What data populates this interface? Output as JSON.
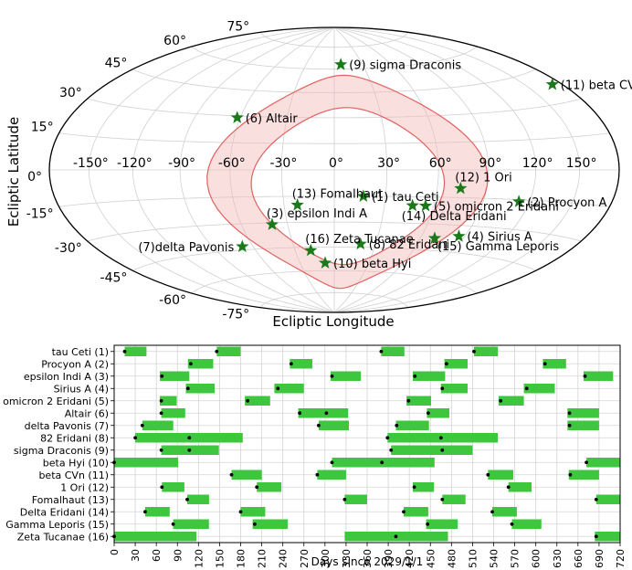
{
  "chart_data": [
    {
      "type": "scatter",
      "projection": "hammer-aitoff",
      "title": "",
      "xlabel": "Ecliptic Longitude",
      "ylabel": "Ecliptic Latitude",
      "xlim": [
        -180,
        180
      ],
      "ylim": [
        -90,
        90
      ],
      "grid": true,
      "lon_ticks": [
        -150,
        -120,
        -90,
        -60,
        -30,
        0,
        30,
        60,
        90,
        120,
        150
      ],
      "lon_tick_labels": [
        "-150°",
        "-120°",
        "-90°",
        "-60°",
        "-30°",
        "0°",
        "30°",
        "60°",
        "90°",
        "120°",
        "150°"
      ],
      "lat_ticks": [
        -75,
        -60,
        -45,
        -30,
        -15,
        0,
        15,
        30,
        45,
        60,
        75
      ],
      "lat_tick_labels": [
        "-75°",
        "-60°",
        "-45°",
        "-30°",
        "-15°",
        "0°",
        "15°",
        "30°",
        "45°",
        "60°",
        "75°"
      ],
      "marker_color": "#1a7a1a",
      "region_color": "#f2b8b5",
      "region_edge_color": "#e46060",
      "stars": [
        {
          "label": "(1) tau Ceti",
          "lon": 17,
          "lat": -15,
          "text_side": "right"
        },
        {
          "label": "(2) Procyon A",
          "lon": 113,
          "lat": -16,
          "text_side": "right"
        },
        {
          "label": "(3) epsilon Indi A",
          "lon": -40,
          "lat": -31,
          "text_side": "above-right"
        },
        {
          "label": "(4) Sirius A",
          "lon": 86,
          "lat": -36,
          "text_side": "right"
        },
        {
          "label": "(5) omicron 2 Eridani",
          "lon": 55,
          "lat": -20,
          "text_side": "right"
        },
        {
          "label": "(6) Altair",
          "lon": -62,
          "lat": 29,
          "text_side": "right"
        },
        {
          "label": "(7)delta Pavonis",
          "lon": -68,
          "lat": -43,
          "text_side": "left"
        },
        {
          "label": "(8) 82 Eridani",
          "lon": 19,
          "lat": -43,
          "text_side": "right"
        },
        {
          "label": "(9) sigma Draconis",
          "lon": 7,
          "lat": 63,
          "text_side": "right"
        },
        {
          "label": "(10) beta Hyi",
          "lon": -8,
          "lat": -55,
          "text_side": "right"
        },
        {
          "label": "(11) beta CVn",
          "lon": 172,
          "lat": 38,
          "text_side": "right"
        },
        {
          "label": "(12) 1 Ori",
          "lon": 74,
          "lat": -10,
          "text_side": "above-right"
        },
        {
          "label": "(13) Fomalhaut",
          "lon": -22,
          "lat": -20,
          "text_side": "above-right"
        },
        {
          "label": "(14) Delta Eridani",
          "lon": 47,
          "lat": -20,
          "text_side": "below"
        },
        {
          "label": "(15) Gamma Leporis",
          "lon": 70,
          "lat": -38,
          "text_side": "below-right"
        },
        {
          "label": "(16) Zeta Tucanae",
          "lon": -18,
          "lat": -47,
          "text_side": "above-right"
        }
      ]
    },
    {
      "type": "gantt",
      "xlabel": "Days since 2029/1/1",
      "ylabel": "",
      "xlim": [
        0,
        720
      ],
      "x_ticks": [
        0,
        30,
        60,
        90,
        120,
        150,
        180,
        210,
        240,
        270,
        300,
        330,
        360,
        390,
        420,
        450,
        480,
        510,
        540,
        570,
        600,
        630,
        660,
        690,
        720
      ],
      "grid": true,
      "bar_color": "#3ec73e",
      "marker_color": "#000000",
      "categories": [
        "tau Ceti (1)",
        "Procyon A (2)",
        "epsilon Indi A (3)",
        "Sirius A (4)",
        "omicron 2 Eridani (5)",
        "Altair (6)",
        "delta Pavonis (7)",
        "82 Eridani (8)",
        "sigma Draconis (9)",
        "beta Hyi (10)",
        "beta CVn (11)",
        "1 Ori (12)",
        "Fomalhaut (13)",
        "Delta Eridani (14)",
        "Gamma Leporis (15)",
        "Zeta Tucanae (16)"
      ],
      "series": [
        {
          "name": "tau Ceti (1)",
          "intervals": [
            [
              15,
              46
            ],
            [
              146,
              180
            ],
            [
              380,
              413
            ],
            [
              512,
              546
            ]
          ],
          "markers": [
            15,
            146,
            380,
            512
          ]
        },
        {
          "name": "Procyon A (2)",
          "intervals": [
            [
              105,
              141
            ],
            [
              250,
              282
            ],
            [
              470,
              503
            ],
            [
              610,
              643
            ]
          ],
          "markers": [
            109,
            252,
            473,
            613
          ]
        },
        {
          "name": "epsilon Indi A (3)",
          "intervals": [
            [
              65,
              107
            ],
            [
              308,
              351
            ],
            [
              425,
              471
            ],
            [
              668,
              710
            ]
          ],
          "markers": [
            68,
            310,
            428,
            670
          ]
        },
        {
          "name": "Sirius A (4)",
          "intervals": [
            [
              102,
              143
            ],
            [
              228,
              270
            ],
            [
              465,
              503
            ],
            [
              583,
              627
            ]
          ],
          "markers": [
            105,
            233,
            467,
            587
          ]
        },
        {
          "name": "omicron 2 Eridani (5)",
          "intervals": [
            [
              65,
              89
            ],
            [
              186,
              222
            ],
            [
              416,
              451
            ],
            [
              547,
              583
            ]
          ],
          "markers": [
            67,
            190,
            419,
            550
          ]
        },
        {
          "name": "Altair (6)",
          "intervals": [
            [
              67,
              101
            ],
            [
              262,
              302
            ],
            [
              300,
              333
            ],
            [
              445,
              477
            ],
            [
              645,
              690
            ]
          ],
          "markers": [
            67,
            264,
            302,
            447,
            648
          ]
        },
        {
          "name": "delta Pavonis (7)",
          "intervals": [
            [
              40,
              84
            ],
            [
              291,
              334
            ],
            [
              401,
              448
            ],
            [
              645,
              690
            ]
          ],
          "markers": [
            40,
            291,
            402,
            648
          ]
        },
        {
          "name": "82 Eridani (8)",
          "intervals": [
            [
              30,
              183
            ],
            [
              389,
              546
            ]
          ],
          "markers": [
            30,
            107,
            389,
            465
          ]
        },
        {
          "name": "sigma Draconis (9)",
          "intervals": [
            [
              67,
              149
            ],
            [
              394,
              510
            ]
          ],
          "markers": [
            67,
            107,
            394,
            467
          ]
        },
        {
          "name": "beta Hyi (10)",
          "intervals": [
            [
              0,
              91
            ],
            [
              310,
              456
            ],
            [
              672,
              720
            ]
          ],
          "markers": [
            0,
            310,
            381,
            672
          ]
        },
        {
          "name": "beta CVn (11)",
          "intervals": [
            [
              167,
              210
            ],
            [
              289,
              330
            ],
            [
              532,
              568
            ],
            [
              647,
              690
            ]
          ],
          "markers": [
            167,
            289,
            532,
            649
          ]
        },
        {
          "name": "1 Ori (12)",
          "intervals": [
            [
              68,
              100
            ],
            [
              203,
              238
            ],
            [
              425,
              455
            ],
            [
              561,
              594
            ]
          ],
          "markers": [
            68,
            203,
            427,
            561
          ]
        },
        {
          "name": "Fomalhaut (13)",
          "intervals": [
            [
              104,
              135
            ],
            [
              328,
              360
            ],
            [
              467,
              500
            ],
            [
              686,
              720
            ]
          ],
          "markers": [
            104,
            328,
            467,
            686
          ]
        },
        {
          "name": "Delta Eridani (14)",
          "intervals": [
            [
              44,
              79
            ],
            [
              180,
              215
            ],
            [
              412,
              447
            ],
            [
              538,
              573
            ]
          ],
          "markers": [
            44,
            180,
            412,
            538
          ]
        },
        {
          "name": "Gamma Leporis (15)",
          "intervals": [
            [
              84,
              135
            ],
            [
              197,
              247
            ],
            [
              444,
              489
            ],
            [
              566,
              608
            ]
          ],
          "markers": [
            84,
            200,
            446,
            566
          ]
        },
        {
          "name": "Zeta Tucanae (16)",
          "intervals": [
            [
              0,
              117
            ],
            [
              328,
              475
            ],
            [
              684,
              720
            ]
          ],
          "markers": [
            0,
            401,
            686
          ]
        }
      ]
    }
  ]
}
